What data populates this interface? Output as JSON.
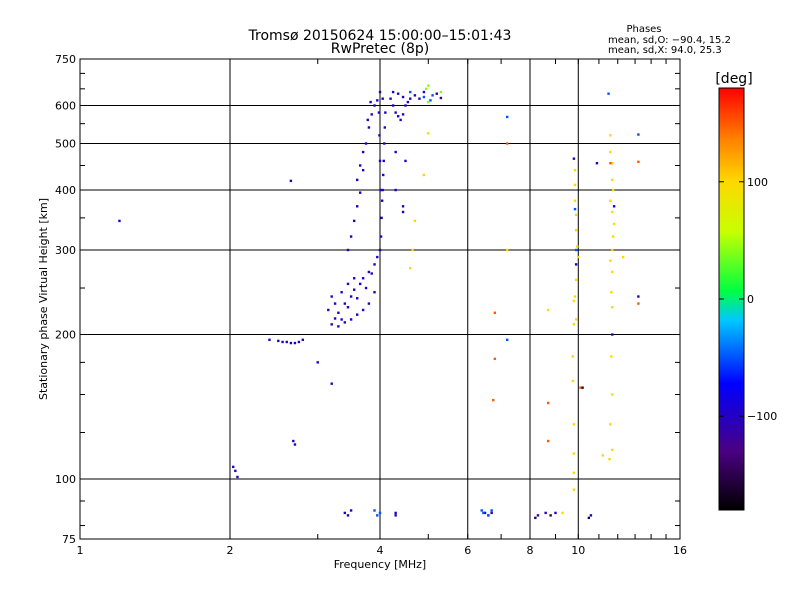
{
  "chart_data": {
    "type": "scatter",
    "title": "Tromsø 20150624 15:00:00–15:01:43",
    "subtitle": "RwPretec (8p)",
    "xlabel": "Frequency [MHz]",
    "ylabel": "Stationary phase Virtual Height [km]",
    "x_scale": "log",
    "y_scale": "log",
    "xlim": [
      1,
      16
    ],
    "ylim": [
      75,
      750
    ],
    "x_ticks": [
      1,
      2,
      4,
      6,
      8,
      10,
      16
    ],
    "x_tick_labels": [
      "1",
      "2",
      "4",
      "6",
      "8",
      "10",
      "16"
    ],
    "y_ticks": [
      75,
      100,
      200,
      300,
      400,
      500,
      600,
      750
    ],
    "y_tick_labels": [
      "75",
      "100",
      "200",
      "300",
      "400",
      "500",
      "600",
      "750"
    ],
    "grid": true,
    "stats": {
      "heading": "Phases",
      "line1": "mean, sd,O: −90.4, 15.2",
      "line2": "mean, sd,X:  94.0, 25.3"
    },
    "colorbar": {
      "label": "[deg]",
      "range": [
        -180,
        180
      ],
      "ticks": [
        100,
        0,
        -100
      ],
      "tick_labels": [
        "100",
        "0",
        "−100"
      ]
    },
    "series": [
      {
        "color_phase": -100,
        "points": [
          [
            1.2,
            345
          ],
          [
            2.65,
            418
          ],
          [
            2.68,
            120
          ],
          [
            2.7,
            118
          ],
          [
            3.0,
            175
          ],
          [
            3.2,
            158
          ],
          [
            2.05,
            104
          ],
          [
            2.03,
            106
          ],
          [
            2.07,
            101
          ],
          [
            2.4,
            195
          ],
          [
            2.5,
            194
          ],
          [
            2.55,
            193
          ],
          [
            2.6,
            193
          ],
          [
            2.65,
            192
          ],
          [
            2.7,
            192
          ],
          [
            2.75,
            193
          ],
          [
            2.8,
            195
          ],
          [
            3.2,
            210
          ],
          [
            3.25,
            216
          ],
          [
            3.3,
            222
          ],
          [
            3.35,
            215
          ],
          [
            3.4,
            232
          ],
          [
            3.45,
            228
          ],
          [
            3.5,
            240
          ],
          [
            3.55,
            248
          ],
          [
            3.6,
            238
          ],
          [
            3.65,
            255
          ],
          [
            3.7,
            262
          ],
          [
            3.75,
            250
          ],
          [
            3.8,
            270
          ],
          [
            3.85,
            268
          ],
          [
            3.9,
            280
          ],
          [
            3.95,
            290
          ],
          [
            3.3,
            208
          ],
          [
            3.4,
            212
          ],
          [
            3.5,
            215
          ],
          [
            3.6,
            220
          ],
          [
            3.7,
            225
          ],
          [
            3.8,
            232
          ],
          [
            3.9,
            245
          ],
          [
            3.35,
            245
          ],
          [
            3.45,
            255
          ],
          [
            3.55,
            262
          ],
          [
            3.25,
            232
          ],
          [
            3.15,
            225
          ],
          [
            3.2,
            240
          ],
          [
            3.45,
            300
          ],
          [
            3.5,
            320
          ],
          [
            3.55,
            345
          ],
          [
            3.6,
            370
          ],
          [
            3.65,
            395
          ],
          [
            3.6,
            420
          ],
          [
            3.65,
            450
          ],
          [
            3.7,
            480
          ],
          [
            3.75,
            500
          ],
          [
            3.8,
            540
          ],
          [
            3.85,
            575
          ],
          [
            3.9,
            600
          ],
          [
            3.95,
            615
          ],
          [
            3.83,
            610
          ],
          [
            3.78,
            560
          ],
          [
            3.7,
            440
          ],
          [
            4.0,
            300
          ],
          [
            4.02,
            320
          ],
          [
            4.03,
            350
          ],
          [
            4.04,
            380
          ],
          [
            4.05,
            400
          ],
          [
            4.06,
            430
          ],
          [
            4.07,
            460
          ],
          [
            4.08,
            500
          ],
          [
            4.09,
            540
          ],
          [
            4.1,
            580
          ],
          [
            4.05,
            620
          ],
          [
            4.0,
            640
          ],
          [
            3.98,
            580
          ],
          [
            3.99,
            520
          ],
          [
            4.0,
            460
          ],
          [
            4.01,
            400
          ],
          [
            4.2,
            620
          ],
          [
            4.25,
            600
          ],
          [
            4.3,
            580
          ],
          [
            4.35,
            570
          ],
          [
            4.4,
            560
          ],
          [
            4.45,
            575
          ],
          [
            4.5,
            600
          ],
          [
            4.6,
            620
          ],
          [
            4.25,
            640
          ],
          [
            4.35,
            635
          ],
          [
            4.45,
            625
          ],
          [
            4.55,
            610
          ],
          [
            4.7,
            630
          ],
          [
            4.8,
            620
          ],
          [
            4.9,
            640
          ],
          [
            5.2,
            635
          ],
          [
            5.3,
            622
          ],
          [
            4.3,
            480
          ],
          [
            4.5,
            460
          ],
          [
            4.3,
            400
          ],
          [
            4.45,
            370
          ],
          [
            4.45,
            360
          ],
          [
            3.4,
            85
          ],
          [
            3.45,
            84
          ],
          [
            3.5,
            86
          ],
          [
            4.3,
            85
          ],
          [
            4.3,
            84
          ],
          [
            6.5,
            85
          ],
          [
            6.6,
            84
          ],
          [
            6.7,
            85
          ],
          [
            8.3,
            84
          ],
          [
            8.6,
            85
          ],
          [
            9.0,
            85
          ],
          [
            10.6,
            84
          ],
          [
            9.8,
            465
          ],
          [
            9.9,
            280
          ],
          [
            10.9,
            455
          ],
          [
            11.7,
            200
          ],
          [
            11.8,
            370
          ],
          [
            13.2,
            240
          ]
        ]
      },
      {
        "color_phase": -50,
        "points": [
          [
            4.6,
            640
          ],
          [
            4.9,
            625
          ],
          [
            5.05,
            615
          ],
          [
            5.1,
            630
          ],
          [
            7.2,
            568
          ],
          [
            7.2,
            195
          ],
          [
            11.5,
            635
          ],
          [
            13.2,
            522
          ],
          [
            6.4,
            86
          ],
          [
            6.45,
            85
          ],
          [
            6.6,
            84
          ],
          [
            6.7,
            86
          ],
          [
            4.0,
            85
          ],
          [
            3.95,
            84
          ],
          [
            3.9,
            86
          ],
          [
            9.85,
            365
          ],
          [
            9.9,
            300
          ]
        ]
      },
      {
        "color_phase": 40,
        "points": [
          [
            5.0,
            660
          ],
          [
            4.95,
            650
          ],
          [
            5.0,
            610
          ],
          [
            5.3,
            640
          ]
        ]
      },
      {
        "color_phase": 100,
        "points": [
          [
            4.9,
            430
          ],
          [
            4.7,
            345
          ],
          [
            4.65,
            300
          ],
          [
            4.6,
            275
          ],
          [
            5.0,
            525
          ],
          [
            7.2,
            300
          ],
          [
            8.7,
            225
          ],
          [
            9.3,
            85
          ],
          [
            9.8,
            235
          ],
          [
            9.8,
            210
          ],
          [
            9.75,
            180
          ],
          [
            9.75,
            160
          ],
          [
            9.8,
            130
          ],
          [
            9.8,
            113
          ],
          [
            9.8,
            103
          ],
          [
            9.8,
            95
          ],
          [
            9.85,
            440
          ],
          [
            9.85,
            410
          ],
          [
            9.85,
            380
          ],
          [
            9.9,
            355
          ],
          [
            9.9,
            330
          ],
          [
            9.95,
            305
          ],
          [
            10.0,
            290
          ],
          [
            9.9,
            260
          ],
          [
            9.85,
            240
          ],
          [
            9.9,
            215
          ],
          [
            11.6,
            520
          ],
          [
            11.6,
            480
          ],
          [
            11.7,
            455
          ],
          [
            11.7,
            420
          ],
          [
            11.75,
            400
          ],
          [
            11.6,
            380
          ],
          [
            11.7,
            360
          ],
          [
            11.8,
            340
          ],
          [
            11.75,
            320
          ],
          [
            11.7,
            300
          ],
          [
            11.6,
            285
          ],
          [
            11.7,
            270
          ],
          [
            11.65,
            245
          ],
          [
            11.7,
            228
          ],
          [
            11.65,
            180
          ],
          [
            11.7,
            150
          ],
          [
            11.6,
            130
          ],
          [
            11.7,
            115
          ],
          [
            11.2,
            112
          ],
          [
            12.3,
            290
          ],
          [
            11.55,
            110
          ]
        ]
      },
      {
        "color_phase": 150,
        "points": [
          [
            6.8,
            222
          ],
          [
            6.8,
            178
          ],
          [
            6.75,
            146
          ],
          [
            8.7,
            144
          ],
          [
            8.7,
            120
          ],
          [
            7.2,
            500
          ],
          [
            13.2,
            458
          ],
          [
            13.2,
            232
          ],
          [
            11.6,
            455
          ],
          [
            10.1,
            155
          ]
        ]
      },
      {
        "color_phase": -150,
        "points": [
          [
            8.2,
            83
          ],
          [
            8.8,
            84
          ],
          [
            10.5,
            83
          ],
          [
            10.2,
            155
          ]
        ]
      }
    ]
  }
}
